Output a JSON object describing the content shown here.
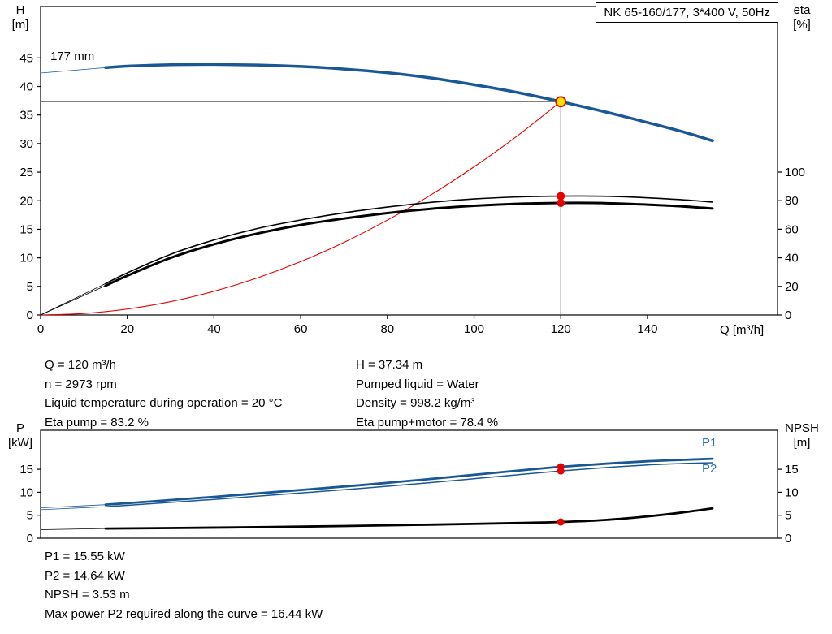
{
  "title_box": "NK 65-160/177, 3*400 V, 50Hz",
  "labels": {
    "h": "H",
    "h_unit": "[m]",
    "eta": "eta",
    "eta_unit": "[%]",
    "q": "Q [m³/h]",
    "p": "P",
    "p_unit": "[kW]",
    "npsh": "NPSH",
    "npsh_unit": "[m]",
    "p1": "P1",
    "p2": "P2",
    "impeller": "177 mm"
  },
  "info_top": {
    "left": [
      "Q = 120 m³/h",
      "n = 2973 rpm",
      "Liquid temperature during operation = 20 °C",
      "Eta pump = 83.2 %"
    ],
    "right": [
      "H = 37.34 m",
      "Pumped liquid = Water",
      "Density = 998.2 kg/m³",
      "Eta pump+motor = 78.4 %"
    ]
  },
  "info_bottom": [
    "P1 = 15.55 kW",
    "P2 = 14.64 kW",
    "NPSH = 3.53 m",
    "Max power P2 required along the curve = 16.44 kW"
  ],
  "colors": {
    "curve_blue": "#1a5795",
    "label_blue": "#2e74b5",
    "red": "#e60000",
    "duty_yellow": "#ffdf00",
    "refline_gray": "#555555",
    "black": "#000000"
  },
  "chart_data": [
    {
      "type": "line",
      "id": "qh-eta-chart",
      "title": "NK 65-160/177, 3*400 V, 50Hz",
      "x": {
        "label": "Q [m³/h]",
        "min": 0,
        "max": 170,
        "ticks": [
          0,
          20,
          40,
          60,
          80,
          100,
          120,
          140
        ]
      },
      "y_left": {
        "label": "H [m]",
        "min": 0,
        "max": 54,
        "ticks": [
          0,
          5,
          10,
          15,
          20,
          25,
          30,
          35,
          40,
          45
        ]
      },
      "y_right": {
        "label": "eta [%]",
        "min": 0,
        "max": 215.9,
        "ticks": [
          0,
          20,
          40,
          60,
          80,
          100
        ]
      },
      "annotation": "177 mm",
      "grid": false,
      "reflines": [
        {
          "dir": "v",
          "x": 120,
          "from": 0,
          "to": 37.34,
          "color": "#555555",
          "width": 1
        },
        {
          "dir": "h",
          "y": 37.34,
          "from": 0,
          "to": 120,
          "color": "#555555",
          "width": 1
        }
      ],
      "series": [
        {
          "name": "system-curve",
          "axis": "left",
          "color": "#e60000",
          "width": 1.1,
          "smooth": true,
          "points": [
            [
              0,
              0
            ],
            [
              10,
              0.26
            ],
            [
              20,
              1.04
            ],
            [
              30,
              2.33
            ],
            [
              40,
              4.15
            ],
            [
              50,
              6.48
            ],
            [
              60,
              9.34
            ],
            [
              70,
              12.71
            ],
            [
              80,
              16.6
            ],
            [
              90,
              21.0
            ],
            [
              100,
              25.93
            ],
            [
              110,
              31.38
            ],
            [
              120,
              37.34
            ]
          ]
        },
        {
          "name": "eta-pump-ext",
          "axis": "right",
          "color": "#000000",
          "width": 0.8,
          "smooth": false,
          "points": [
            [
              0,
              0
            ],
            [
              15,
              22
            ]
          ]
        },
        {
          "name": "eta-pump",
          "axis": "right",
          "color": "#000000",
          "width": 1.6,
          "smooth": true,
          "points": [
            [
              15,
              22
            ],
            [
              20,
              29.5
            ],
            [
              30,
              42.5
            ],
            [
              40,
              52.5
            ],
            [
              50,
              60.5
            ],
            [
              60,
              66.5
            ],
            [
              70,
              71.5
            ],
            [
              80,
              75.5
            ],
            [
              90,
              78.8
            ],
            [
              100,
              81.2
            ],
            [
              110,
              82.6
            ],
            [
              120,
              83.2
            ],
            [
              130,
              83.1
            ],
            [
              140,
              82.0
            ],
            [
              148,
              80.6
            ],
            [
              155,
              79.0
            ]
          ]
        },
        {
          "name": "eta-pump-motor-ext",
          "axis": "right",
          "color": "#000000",
          "width": 0.8,
          "smooth": false,
          "points": [
            [
              0,
              0
            ],
            [
              15,
              20.5
            ]
          ]
        },
        {
          "name": "eta-pump-motor",
          "axis": "right",
          "color": "#000000",
          "width": 3,
          "smooth": true,
          "points": [
            [
              15,
              20.5
            ],
            [
              20,
              27.5
            ],
            [
              30,
              40.0
            ],
            [
              40,
              49.5
            ],
            [
              50,
              57.0
            ],
            [
              60,
              63.0
            ],
            [
              70,
              67.5
            ],
            [
              80,
              71.3
            ],
            [
              90,
              74.3
            ],
            [
              100,
              76.4
            ],
            [
              110,
              77.8
            ],
            [
              120,
              78.4
            ],
            [
              130,
              78.3
            ],
            [
              140,
              77.2
            ],
            [
              148,
              76.0
            ],
            [
              155,
              74.5
            ]
          ]
        },
        {
          "name": "head-ext",
          "axis": "left",
          "color": "#1a5795",
          "width": 0.8,
          "smooth": false,
          "points": [
            [
              0,
              42.35
            ],
            [
              15,
              43.3
            ]
          ]
        },
        {
          "name": "head-curve",
          "axis": "left",
          "color": "#1a5795",
          "width": 3.5,
          "smooth": true,
          "points": [
            [
              15,
              43.3
            ],
            [
              20,
              43.55
            ],
            [
              30,
              43.8
            ],
            [
              40,
              43.85
            ],
            [
              50,
              43.75
            ],
            [
              60,
              43.5
            ],
            [
              70,
              43.05
            ],
            [
              80,
              42.4
            ],
            [
              90,
              41.5
            ],
            [
              100,
              40.3
            ],
            [
              110,
              38.95
            ],
            [
              120,
              37.34
            ],
            [
              130,
              35.6
            ],
            [
              140,
              33.7
            ],
            [
              148,
              32.1
            ],
            [
              155,
              30.5
            ]
          ]
        }
      ],
      "markers": [
        {
          "name": "eta-pump-point",
          "axis": "right",
          "x": 120,
          "y": 83.2,
          "r": 5,
          "fill": "#e60000",
          "stroke": "none",
          "stroke_width": 0
        },
        {
          "name": "eta-pump-motor-point",
          "axis": "right",
          "x": 120,
          "y": 78.4,
          "r": 5,
          "fill": "#e60000",
          "stroke": "none",
          "stroke_width": 0
        },
        {
          "name": "duty-point",
          "axis": "left",
          "x": 120,
          "y": 37.34,
          "r": 6,
          "fill": "#ffdf00",
          "stroke": "#e60000",
          "stroke_width": 1.8
        }
      ]
    },
    {
      "type": "line",
      "id": "power-npsh-chart",
      "title": "",
      "x": {
        "label": "",
        "min": 0,
        "max": 170,
        "ticks": []
      },
      "y_left": {
        "label": "P [kW]",
        "min": 0,
        "max": 23.5,
        "ticks": [
          0,
          5,
          10,
          15
        ]
      },
      "y_right": {
        "label": "NPSH [m]",
        "min": 0,
        "max": 23.5,
        "ticks": [
          0,
          5,
          10,
          15
        ]
      },
      "grid": false,
      "reflines": [],
      "series": [
        {
          "name": "p2-ext",
          "axis": "left",
          "color": "#1a5795",
          "width": 0.8,
          "smooth": false,
          "points": [
            [
              0,
              6.2
            ],
            [
              15,
              6.85
            ]
          ]
        },
        {
          "name": "p2-curve",
          "axis": "left",
          "color": "#1a5795",
          "width": 1.5,
          "smooth": true,
          "points": [
            [
              15,
              6.85
            ],
            [
              20,
              7.15
            ],
            [
              30,
              7.8
            ],
            [
              40,
              8.45
            ],
            [
              50,
              9.15
            ],
            [
              60,
              9.85
            ],
            [
              70,
              10.55
            ],
            [
              80,
              11.3
            ],
            [
              90,
              12.1
            ],
            [
              100,
              12.95
            ],
            [
              110,
              13.8
            ],
            [
              120,
              14.64
            ],
            [
              130,
              15.35
            ],
            [
              140,
              15.95
            ],
            [
              148,
              16.25
            ],
            [
              155,
              16.44
            ]
          ]
        },
        {
          "name": "p1-ext",
          "axis": "left",
          "color": "#1a5795",
          "width": 0.8,
          "smooth": false,
          "points": [
            [
              0,
              6.6
            ],
            [
              15,
              7.3
            ]
          ]
        },
        {
          "name": "p1-curve",
          "axis": "left",
          "color": "#1a5795",
          "width": 2.8,
          "smooth": true,
          "points": [
            [
              15,
              7.3
            ],
            [
              20,
              7.62
            ],
            [
              30,
              8.3
            ],
            [
              40,
              9.0
            ],
            [
              50,
              9.75
            ],
            [
              60,
              10.5
            ],
            [
              70,
              11.25
            ],
            [
              80,
              12.05
            ],
            [
              90,
              12.9
            ],
            [
              100,
              13.8
            ],
            [
              110,
              14.7
            ],
            [
              120,
              15.55
            ],
            [
              130,
              16.2
            ],
            [
              140,
              16.75
            ],
            [
              148,
              17.05
            ],
            [
              155,
              17.3
            ]
          ]
        },
        {
          "name": "npsh-ext",
          "axis": "right",
          "color": "#000000",
          "width": 0.8,
          "smooth": false,
          "points": [
            [
              0,
              1.85
            ],
            [
              15,
              2.1
            ]
          ]
        },
        {
          "name": "npsh-curve",
          "axis": "right",
          "color": "#000000",
          "width": 2.8,
          "smooth": true,
          "points": [
            [
              15,
              2.1
            ],
            [
              30,
              2.2
            ],
            [
              50,
              2.4
            ],
            [
              70,
              2.65
            ],
            [
              90,
              2.95
            ],
            [
              110,
              3.3
            ],
            [
              120,
              3.53
            ],
            [
              130,
              3.95
            ],
            [
              140,
              4.75
            ],
            [
              148,
              5.6
            ],
            [
              155,
              6.5
            ]
          ]
        }
      ],
      "markers": [
        {
          "name": "p1-point",
          "axis": "left",
          "x": 120,
          "y": 15.55,
          "r": 4.5,
          "fill": "#e60000",
          "stroke": "none",
          "stroke_width": 0
        },
        {
          "name": "p2-point",
          "axis": "left",
          "x": 120,
          "y": 14.64,
          "r": 4.5,
          "fill": "#e60000",
          "stroke": "none",
          "stroke_width": 0
        },
        {
          "name": "npsh-point",
          "axis": "right",
          "x": 120,
          "y": 3.53,
          "r": 4.5,
          "fill": "#e60000",
          "stroke": "none",
          "stroke_width": 0
        }
      ]
    }
  ]
}
